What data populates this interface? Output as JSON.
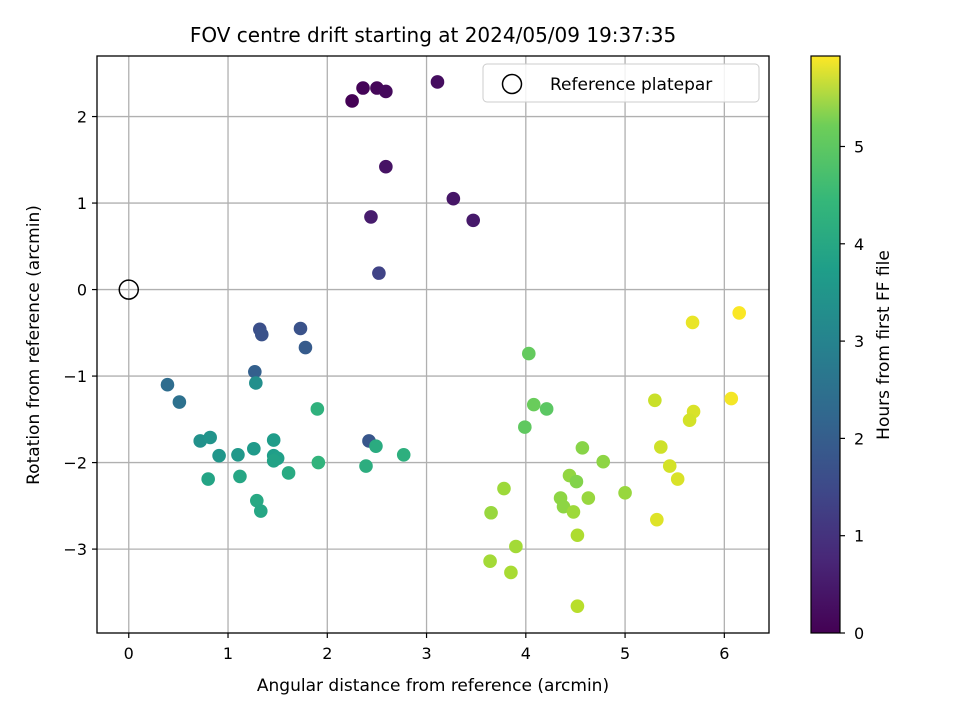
{
  "chart_data": {
    "type": "scatter",
    "title": "FOV centre drift starting at 2024/05/09 19:37:35",
    "xlabel": "Angular distance from reference (arcmin)",
    "ylabel": "Rotation from reference (arcmin)",
    "xlim": [
      -0.32,
      6.45
    ],
    "ylim": [
      -3.97,
      2.7
    ],
    "xticks": [
      0,
      1,
      2,
      3,
      4,
      5,
      6
    ],
    "yticks": [
      -3,
      -2,
      -1,
      0,
      1,
      2
    ],
    "xtick_labels": [
      "0",
      "1",
      "2",
      "3",
      "4",
      "5",
      "6"
    ],
    "ytick_labels": [
      "−3",
      "−2",
      "−1",
      "0",
      "1",
      "2"
    ],
    "grid": true,
    "legend": {
      "placement": "top-right",
      "entries": [
        "Reference platepar"
      ]
    },
    "reference": {
      "x": 0,
      "y": 0
    },
    "colorbar": {
      "label": "Hours from first FF file",
      "range": [
        0,
        5.93
      ],
      "ticks": [
        0,
        1,
        2,
        3,
        4,
        5
      ],
      "colormap": "viridis"
    },
    "points": [
      [
        2.25,
        2.18,
        0.02
      ],
      [
        2.36,
        2.33,
        0.05
      ],
      [
        2.5,
        2.33,
        0.1
      ],
      [
        2.59,
        2.29,
        0.15
      ],
      [
        3.11,
        2.4,
        0.2
      ],
      [
        2.59,
        1.42,
        0.3
      ],
      [
        3.27,
        1.05,
        0.35
      ],
      [
        3.47,
        0.8,
        0.4
      ],
      [
        2.44,
        0.84,
        0.45
      ],
      [
        2.52,
        0.19,
        1.2
      ],
      [
        1.32,
        -0.46,
        1.45
      ],
      [
        1.34,
        -0.52,
        1.5
      ],
      [
        1.73,
        -0.45,
        1.5
      ],
      [
        1.78,
        -0.67,
        1.7
      ],
      [
        1.27,
        -0.95,
        1.8
      ],
      [
        0.39,
        -1.1,
        2.1
      ],
      [
        0.51,
        -1.3,
        2.2
      ],
      [
        2.42,
        -1.75,
        1.6
      ],
      [
        1.28,
        -1.08,
        2.95
      ],
      [
        0.72,
        -1.75,
        3.0
      ],
      [
        0.82,
        -1.71,
        3.05
      ],
      [
        0.91,
        -1.92,
        3.1
      ],
      [
        1.1,
        -1.91,
        3.15
      ],
      [
        1.26,
        -1.84,
        3.2
      ],
      [
        1.46,
        -1.74,
        3.25
      ],
      [
        1.46,
        -1.92,
        3.3
      ],
      [
        1.5,
        -1.95,
        3.35
      ],
      [
        1.46,
        -1.98,
        3.4
      ],
      [
        1.12,
        -2.16,
        3.5
      ],
      [
        0.8,
        -2.19,
        3.45
      ],
      [
        1.61,
        -2.12,
        3.6
      ],
      [
        1.29,
        -2.44,
        3.55
      ],
      [
        1.33,
        -2.56,
        3.5
      ],
      [
        1.9,
        -1.38,
        3.8
      ],
      [
        1.91,
        -2.0,
        3.85
      ],
      [
        2.39,
        -2.04,
        3.7
      ],
      [
        2.49,
        -1.81,
        3.65
      ],
      [
        2.77,
        -1.91,
        3.75
      ],
      [
        4.03,
        -0.74,
        4.5
      ],
      [
        4.08,
        -1.33,
        4.55
      ],
      [
        4.21,
        -1.38,
        4.4
      ],
      [
        3.99,
        -1.59,
        4.45
      ],
      [
        4.57,
        -1.83,
        4.85
      ],
      [
        4.78,
        -1.99,
        4.9
      ],
      [
        4.44,
        -2.15,
        4.95
      ],
      [
        4.51,
        -2.22,
        4.8
      ],
      [
        4.35,
        -2.41,
        4.9
      ],
      [
        4.38,
        -2.51,
        4.9
      ],
      [
        4.63,
        -2.41,
        5.0
      ],
      [
        4.48,
        -2.57,
        5.05
      ],
      [
        5.0,
        -2.35,
        5.0
      ],
      [
        4.52,
        -2.84,
        5.2
      ],
      [
        3.65,
        -2.58,
        5.0
      ],
      [
        3.78,
        -2.3,
        5.05
      ],
      [
        3.9,
        -2.97,
        5.1
      ],
      [
        3.85,
        -3.27,
        5.15
      ],
      [
        3.64,
        -3.14,
        5.1
      ],
      [
        4.52,
        -3.66,
        5.3
      ],
      [
        5.3,
        -1.28,
        5.45
      ],
      [
        5.36,
        -1.82,
        5.5
      ],
      [
        5.45,
        -2.04,
        5.55
      ],
      [
        5.53,
        -2.19,
        5.6
      ],
      [
        5.32,
        -2.66,
        5.65
      ],
      [
        5.69,
        -1.41,
        5.6
      ],
      [
        5.65,
        -1.51,
        5.55
      ],
      [
        5.68,
        -0.38,
        5.75
      ],
      [
        6.15,
        -0.27,
        5.9
      ],
      [
        6.07,
        -1.26,
        5.85
      ]
    ]
  }
}
